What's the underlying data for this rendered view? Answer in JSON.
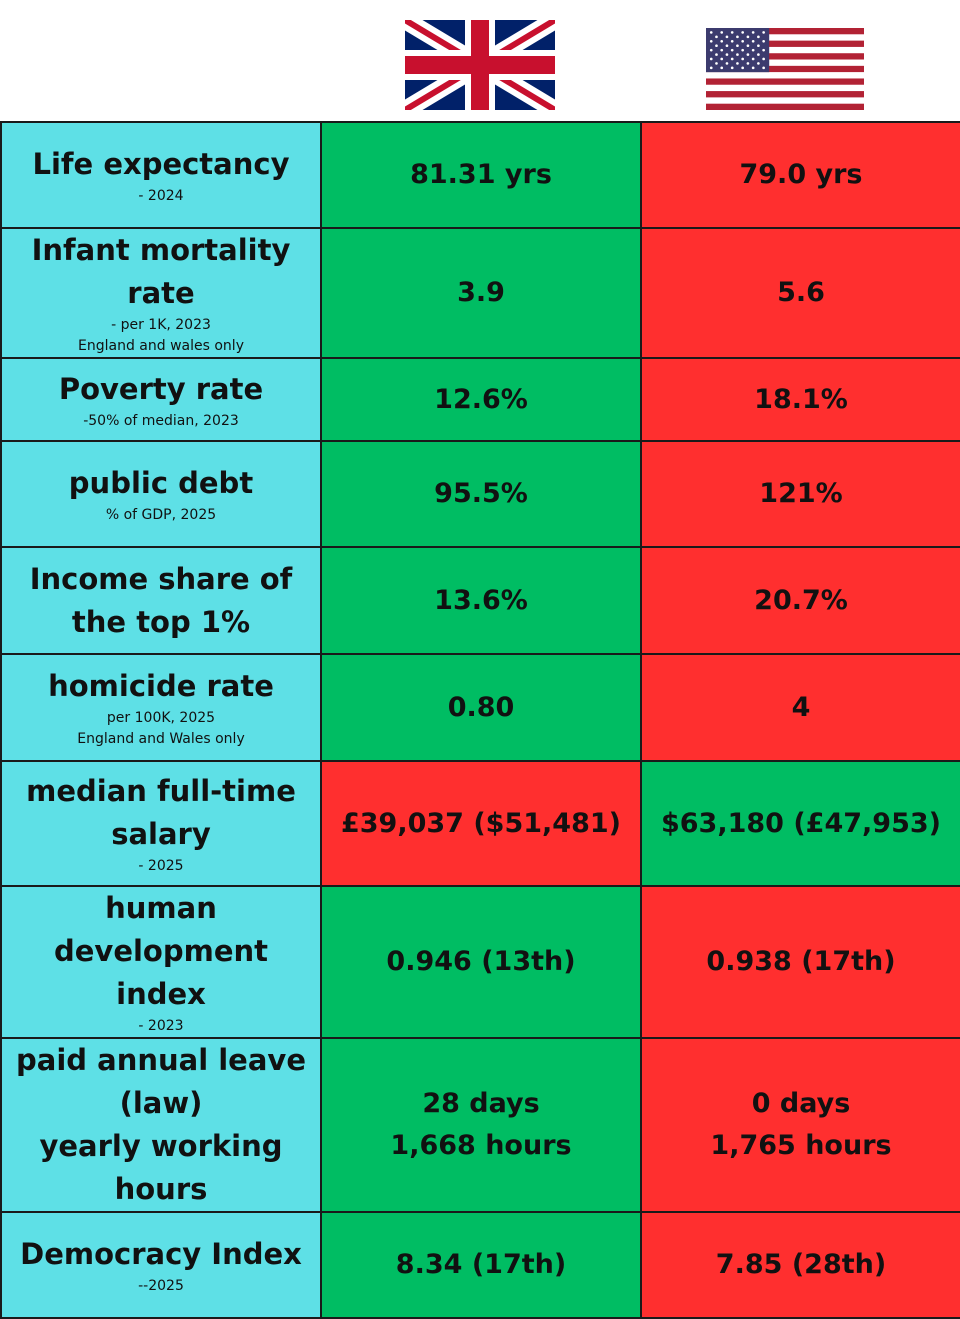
{
  "flags": {
    "left": "uk-flag",
    "right": "us-flag"
  },
  "colors": {
    "label_bg": "#5ee0e6",
    "better": "#00bd63",
    "worse": "#ff2f2f"
  },
  "rows": [
    {
      "title": "Life expectancy",
      "subs": [
        "- 2024"
      ],
      "uk": [
        "81.31 yrs"
      ],
      "us": [
        "79.0 yrs"
      ],
      "uk_status": "good",
      "us_status": "bad"
    },
    {
      "title": "Infant mortality rate",
      "subs": [
        "- per 1K, 2023",
        "England and wales only"
      ],
      "uk": [
        "3.9"
      ],
      "us": [
        "5.6"
      ],
      "uk_status": "good",
      "us_status": "bad"
    },
    {
      "title": "Poverty rate",
      "subs": [
        "-50% of median, 2023"
      ],
      "uk": [
        "12.6%"
      ],
      "us": [
        "18.1%"
      ],
      "uk_status": "good",
      "us_status": "bad"
    },
    {
      "title": "public debt",
      "subs": [
        "% of GDP, 2025"
      ],
      "uk": [
        "95.5%"
      ],
      "us": [
        "121%"
      ],
      "uk_status": "good",
      "us_status": "bad"
    },
    {
      "title": "Income share of the top 1%",
      "subs": [],
      "uk": [
        "13.6%"
      ],
      "us": [
        "20.7%"
      ],
      "uk_status": "good",
      "us_status": "bad"
    },
    {
      "title": "homicide rate",
      "subs": [
        "per 100K, 2025",
        "England and Wales only"
      ],
      "uk": [
        "0.80"
      ],
      "us": [
        "4"
      ],
      "uk_status": "good",
      "us_status": "bad"
    },
    {
      "title": "median full-time salary",
      "subs": [
        "- 2025"
      ],
      "uk": [
        "£39,037 ($51,481)"
      ],
      "us": [
        "$63,180 (£47,953)"
      ],
      "uk_status": "bad",
      "us_status": "good"
    },
    {
      "title": "human development index",
      "subs": [
        "- 2023"
      ],
      "uk": [
        "0.946 (13th)"
      ],
      "us": [
        "0.938 (17th)"
      ],
      "uk_status": "good",
      "us_status": "bad"
    },
    {
      "title": "paid annual leave (law)",
      "title2": "yearly working hours",
      "subs": [],
      "uk": [
        "28 days",
        "1,668 hours"
      ],
      "us": [
        "0 days",
        "1,765 hours"
      ],
      "uk_status": "good",
      "us_status": "bad"
    },
    {
      "title": "Democracy Index",
      "subs": [
        "--2025"
      ],
      "uk": [
        "8.34 (17th)"
      ],
      "us": [
        "7.85 (28th)"
      ],
      "uk_status": "good",
      "us_status": "bad"
    }
  ]
}
